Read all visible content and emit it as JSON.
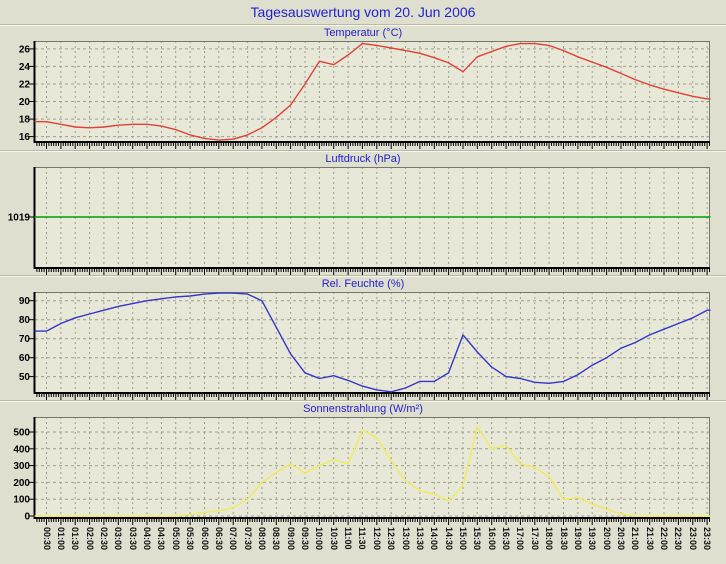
{
  "page": {
    "title": "Tagesauswertung vom 20. Jun 2006"
  },
  "style": {
    "background": "#dfdfd0",
    "plot_background": "#e8e8d9",
    "grid_color": "#9e9e90",
    "axis_color": "#000000",
    "axis_light_color": "#77776a",
    "title_color": "#2222cc",
    "tick_label_color": "#000000"
  },
  "x_axis": {
    "labels": [
      "00:30",
      "01:00",
      "01:30",
      "02:00",
      "02:30",
      "03:00",
      "03:30",
      "04:00",
      "04:30",
      "05:00",
      "05:30",
      "06:00",
      "06:30",
      "07:00",
      "07:30",
      "08:00",
      "08:30",
      "09:00",
      "09:30",
      "10:00",
      "10:30",
      "11:00",
      "11:30",
      "12:00",
      "12:30",
      "13:00",
      "13:30",
      "14:00",
      "14:30",
      "15:00",
      "15:30",
      "16:00",
      "16:30",
      "17:00",
      "17:30",
      "18:00",
      "18:30",
      "19:00",
      "19:30",
      "20:00",
      "20:30",
      "21:00",
      "21:30",
      "22:00",
      "22:30",
      "23:00",
      "23:30"
    ]
  },
  "chart_data": [
    {
      "type": "line",
      "title": "Temperatur (°C)",
      "color": "#e04038",
      "y_ticks": [
        16,
        18,
        20,
        22,
        24,
        26
      ],
      "ylim": [
        15.5,
        26.9
      ],
      "h_grid": true,
      "values": [
        17.7,
        17.4,
        17.1,
        17.0,
        17.1,
        17.3,
        17.4,
        17.4,
        17.2,
        16.8,
        16.2,
        15.8,
        15.6,
        15.7,
        16.2,
        17.0,
        18.2,
        19.6,
        22.0,
        24.6,
        24.2,
        25.3,
        26.6,
        26.4,
        26.1,
        25.8,
        25.5,
        25.0,
        24.4,
        23.4,
        25.1,
        25.7,
        26.3,
        26.6,
        26.6,
        26.4,
        25.8,
        25.1,
        24.5,
        23.9,
        23.2,
        22.5,
        21.9,
        21.4,
        21.0,
        20.6,
        20.3
      ]
    },
    {
      "type": "line",
      "title": "Luftdruck (hPa)",
      "color": "#00a000",
      "y_ticks": [
        1019
      ],
      "ylim": [
        1014,
        1024
      ],
      "h_grid": false,
      "values": [
        1019,
        1019,
        1019,
        1019,
        1019,
        1019,
        1019,
        1019,
        1019,
        1019,
        1019,
        1019,
        1019,
        1019,
        1019,
        1019,
        1019,
        1019,
        1019,
        1019,
        1019,
        1019,
        1019,
        1019,
        1019,
        1019,
        1019,
        1019,
        1019,
        1019,
        1019,
        1019,
        1019,
        1019,
        1019,
        1019,
        1019,
        1019,
        1019,
        1019,
        1019,
        1019,
        1019,
        1019,
        1019,
        1019,
        1019
      ]
    },
    {
      "type": "line",
      "title": "Rel. Feuchte (%)",
      "color": "#3535c8",
      "y_ticks": [
        50,
        60,
        70,
        80,
        90
      ],
      "ylim": [
        41.9,
        94.6
      ],
      "h_grid": true,
      "values": [
        74,
        78,
        81,
        83,
        85,
        87,
        88.5,
        90,
        91,
        92,
        92.5,
        93.5,
        94,
        94,
        93.5,
        90,
        76,
        62,
        52,
        49,
        50.5,
        48,
        45,
        43,
        42,
        44,
        47.5,
        47.5,
        52,
        72,
        63,
        55,
        50,
        49,
        47,
        46.5,
        47.5,
        51,
        56,
        60,
        65,
        68,
        72,
        75,
        78,
        81,
        85
      ]
    },
    {
      "type": "line",
      "title": "Sonnenstrahlung (W/m²)",
      "color": "#efec58",
      "y_ticks": [
        0,
        100,
        200,
        300,
        400,
        500
      ],
      "ylim": [
        -6,
        589
      ],
      "h_grid": true,
      "values": [
        0,
        0,
        0,
        0,
        0,
        0,
        0,
        0,
        0,
        0,
        8,
        20,
        32,
        48,
        100,
        200,
        260,
        310,
        255,
        300,
        335,
        310,
        510,
        465,
        330,
        210,
        150,
        130,
        90,
        180,
        530,
        400,
        420,
        310,
        290,
        235,
        100,
        110,
        70,
        40,
        12,
        0,
        0,
        0,
        0,
        0,
        0
      ]
    }
  ]
}
